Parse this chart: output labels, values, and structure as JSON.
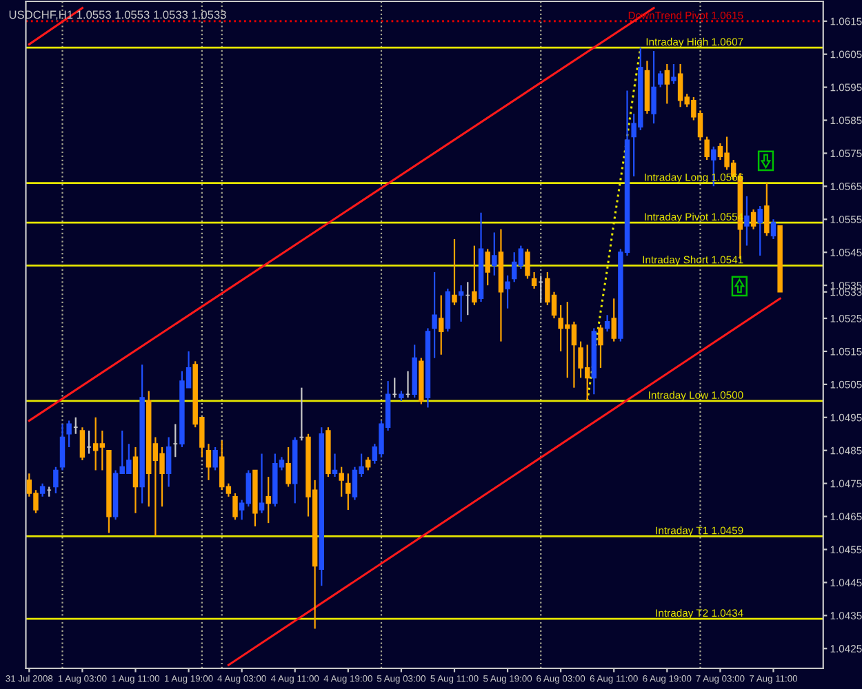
{
  "chart_data": {
    "type": "candlestick",
    "title": "USDCHF,H1 1.0553 1.0553 1.0533 1.0533",
    "categories": [
      "31 Jul 2008",
      null,
      null,
      null,
      null,
      null,
      null,
      null,
      "1 Aug 03:00",
      null,
      null,
      null,
      null,
      null,
      null,
      null,
      "1 Aug 11:00",
      null,
      null,
      null,
      null,
      null,
      null,
      null,
      "1 Aug 19:00",
      null,
      null,
      null,
      null,
      null,
      null,
      null,
      "4 Aug 03:00",
      null,
      null,
      null,
      null,
      null,
      null,
      null,
      "4 Aug 11:00",
      null,
      null,
      null,
      null,
      null,
      null,
      null,
      "4 Aug 19:00",
      null,
      null,
      null,
      null,
      null,
      null,
      null,
      "5 Aug 03:00",
      null,
      null,
      null,
      null,
      null,
      null,
      null,
      "5 Aug 11:00",
      null,
      null,
      null,
      null,
      null,
      null,
      null,
      "5 Aug 19:00",
      null,
      null,
      null,
      null,
      null,
      null,
      null,
      "6 Aug 03:00",
      null,
      null,
      null,
      null,
      null,
      null,
      null,
      "6 Aug 11:00",
      null,
      null,
      null,
      null,
      null,
      null,
      null,
      "6 Aug 19:00",
      null,
      null,
      null,
      null,
      null,
      null,
      null,
      "7 Aug 03:00",
      null,
      null,
      null,
      null,
      null,
      null,
      null,
      "7 Aug 11:00",
      null
    ],
    "ohlc": [
      [
        1.0476,
        1.0478,
        1.0471,
        1.0472
      ],
      [
        1.0472,
        1.0473,
        1.0466,
        1.0467
      ],
      [
        1.0472,
        1.0475,
        1.0471,
        1.0474
      ],
      [
        1.0473,
        1.0474,
        1.0471,
        1.0473
      ],
      [
        1.0474,
        1.048,
        1.0472,
        1.0479
      ],
      [
        1.048,
        1.0493,
        1.0479,
        1.0489
      ],
      [
        1.049,
        1.0494,
        1.0486,
        1.0493
      ],
      [
        1.0492,
        1.0495,
        1.049,
        1.0492
      ],
      [
        1.0491,
        1.0492,
        1.0482,
        1.0483
      ],
      [
        1.0486,
        1.0491,
        1.0484,
        1.0486
      ],
      [
        1.0487,
        1.0495,
        1.0479,
        1.0485
      ],
      [
        1.0487,
        1.0491,
        1.0479,
        1.0486
      ],
      [
        1.0485,
        1.0485,
        1.046,
        1.0465
      ],
      [
        1.0465,
        1.0479,
        1.0464,
        1.0478
      ],
      [
        1.0478,
        1.0491,
        1.0478,
        1.048
      ],
      [
        1.0478,
        1.0487,
        1.0478,
        1.0482
      ],
      [
        1.0483,
        1.0486,
        1.0466,
        1.0474
      ],
      [
        1.0474,
        1.0511,
        1.0469,
        1.0501
      ],
      [
        1.05,
        1.0503,
        1.0468,
        1.0478
      ],
      [
        1.0487,
        1.0489,
        1.0459,
        1.0482
      ],
      [
        1.0484,
        1.0486,
        1.0468,
        1.0478
      ],
      [
        1.0478,
        1.0489,
        1.0474,
        1.0486
      ],
      [
        1.0487,
        1.0493,
        1.0483,
        1.0487
      ],
      [
        1.0487,
        1.0509,
        1.0486,
        1.0506
      ],
      [
        1.0504,
        1.0515,
        1.0504,
        1.051
      ],
      [
        1.0511,
        1.0512,
        1.0492,
        1.0493
      ],
      [
        1.0495,
        1.0495,
        1.0483,
        1.0486
      ],
      [
        1.0485,
        1.0487,
        1.0476,
        1.048
      ],
      [
        1.048,
        1.0486,
        1.0479,
        1.0485
      ],
      [
        1.0483,
        1.0488,
        1.0473,
        1.0474
      ],
      [
        1.0474,
        1.0475,
        1.0471,
        1.0472
      ],
      [
        1.0471,
        1.0472,
        1.0464,
        1.0465
      ],
      [
        1.0467,
        1.047,
        1.0464,
        1.0469
      ],
      [
        1.0469,
        1.0479,
        1.0468,
        1.0478
      ],
      [
        1.0479,
        1.0479,
        1.0462,
        1.0466
      ],
      [
        1.0467,
        1.0484,
        1.0466,
        1.0469
      ],
      [
        1.0471,
        1.0477,
        1.0463,
        1.0469
      ],
      [
        1.0469,
        1.0484,
        1.0468,
        1.0481
      ],
      [
        1.048,
        1.0483,
        1.0479,
        1.0482
      ],
      [
        1.0481,
        1.0486,
        1.0474,
        1.0475
      ],
      [
        1.0475,
        1.0489,
        1.0469,
        1.0488
      ],
      [
        1.0489,
        1.0504,
        1.0488,
        1.0489
      ],
      [
        1.0489,
        1.049,
        1.0465,
        1.0471
      ],
      [
        1.0473,
        1.0476,
        1.0431,
        1.045
      ],
      [
        1.0449,
        1.0492,
        1.0444,
        1.049
      ],
      [
        1.0491,
        1.0492,
        1.0477,
        1.0478
      ],
      [
        1.0478,
        1.0484,
        1.0477,
        1.0479
      ],
      [
        1.0478,
        1.048,
        1.0471,
        1.0476
      ],
      [
        1.0475,
        1.0478,
        1.0467,
        1.0472
      ],
      [
        1.0471,
        1.048,
        1.047,
        1.0479
      ],
      [
        1.0478,
        1.0484,
        1.0477,
        1.048
      ],
      [
        1.0482,
        1.0483,
        1.0479,
        1.048
      ],
      [
        1.0482,
        1.0487,
        1.0481,
        1.0486
      ],
      [
        1.0484,
        1.0494,
        1.0483,
        1.0493
      ],
      [
        1.0492,
        1.0506,
        1.0491,
        1.0502
      ],
      [
        1.0502,
        1.0507,
        1.0501,
        1.0502
      ],
      [
        1.0501,
        1.0503,
        1.05,
        1.0502
      ],
      [
        1.0502,
        1.0509,
        1.0501,
        1.0502
      ],
      [
        1.0502,
        1.0517,
        1.0501,
        1.0513
      ],
      [
        1.0512,
        1.0513,
        1.0499,
        1.05
      ],
      [
        1.0501,
        1.0522,
        1.0498,
        1.0521
      ],
      [
        1.0522,
        1.0539,
        1.0513,
        1.0526
      ],
      [
        1.0525,
        1.0532,
        1.0514,
        1.0521
      ],
      [
        1.0522,
        1.0534,
        1.0521,
        1.0533
      ],
      [
        1.0532,
        1.0549,
        1.0529,
        1.053
      ],
      [
        1.0532,
        1.0535,
        1.0524,
        1.0533
      ],
      [
        1.0532,
        1.0536,
        1.0526,
        1.0532
      ],
      [
        1.0533,
        1.0547,
        1.0529,
        1.053
      ],
      [
        1.0531,
        1.0557,
        1.053,
        1.0546
      ],
      [
        1.0545,
        1.0546,
        1.0535,
        1.0539
      ],
      [
        1.0541,
        1.0551,
        1.0538,
        1.0544
      ],
      [
        1.0545,
        1.0552,
        1.0518,
        1.0533
      ],
      [
        1.0534,
        1.0538,
        1.0528,
        1.0536
      ],
      [
        1.0537,
        1.0545,
        1.0536,
        1.0542
      ],
      [
        1.0541,
        1.0547,
        1.054,
        1.0546
      ],
      [
        1.0545,
        1.0546,
        1.0537,
        1.0538
      ],
      [
        1.0537,
        1.0539,
        1.0534,
        1.0535
      ],
      [
        1.0536,
        1.0538,
        1.053,
        1.0536
      ],
      [
        1.0537,
        1.0539,
        1.0529,
        1.053
      ],
      [
        1.0532,
        1.0533,
        1.0525,
        1.0526
      ],
      [
        1.0525,
        1.0529,
        1.0515,
        1.0522
      ],
      [
        1.0523,
        1.053,
        1.0507,
        1.0522
      ],
      [
        1.0523,
        1.0524,
        1.0504,
        1.0517
      ],
      [
        1.0516,
        1.0518,
        1.0507,
        1.051
      ],
      [
        1.051,
        1.0517,
        1.05,
        1.0507
      ],
      [
        1.0507,
        1.0522,
        1.0502,
        1.0521
      ],
      [
        1.0522,
        1.0523,
        1.051,
        1.0517
      ],
      [
        1.0522,
        1.0526,
        1.0521,
        1.0524
      ],
      [
        1.0525,
        1.0531,
        1.0518,
        1.0519
      ],
      [
        1.0519,
        1.0546,
        1.0518,
        1.0545
      ],
      [
        1.0545,
        1.0594,
        1.0544,
        1.0579
      ],
      [
        1.058,
        1.0587,
        1.0568,
        1.0584
      ],
      [
        1.0583,
        1.0607,
        1.0582,
        1.0601
      ],
      [
        1.06,
        1.0603,
        1.0587,
        1.0588
      ],
      [
        1.0587,
        1.0606,
        1.0584,
        1.0595
      ],
      [
        1.0596,
        1.06,
        1.0595,
        1.0599
      ],
      [
        1.06,
        1.0602,
        1.059,
        1.0596
      ],
      [
        1.0597,
        1.0602,
        1.0596,
        1.0598
      ],
      [
        1.0599,
        1.0602,
        1.0589,
        1.0591
      ],
      [
        1.0592,
        1.0593,
        1.0589,
        1.059
      ],
      [
        1.0591,
        1.0592,
        1.0585,
        1.0586
      ],
      [
        1.0587,
        1.0588,
        1.0579,
        1.058
      ],
      [
        1.0579,
        1.058,
        1.0573,
        1.0574
      ],
      [
        1.0573,
        1.0577,
        1.0565,
        1.0576
      ],
      [
        1.0577,
        1.0578,
        1.0573,
        1.0574
      ],
      [
        1.0575,
        1.058,
        1.057,
        1.0571
      ],
      [
        1.0572,
        1.0573,
        1.0567,
        1.0568
      ],
      [
        1.0568,
        1.0569,
        1.0543,
        1.0552
      ],
      [
        1.0553,
        1.0562,
        1.0547,
        1.0556
      ],
      [
        1.0557,
        1.0558,
        1.0552,
        1.0553
      ],
      [
        1.0554,
        1.0559,
        1.0544,
        1.0558
      ],
      [
        1.0559,
        1.0566,
        1.055,
        1.0551
      ],
      [
        1.055,
        1.0555,
        1.0549,
        1.0554
      ],
      [
        1.0553,
        1.0553,
        1.0533,
        1.0533
      ]
    ],
    "colors": [
      "#ffa500",
      "#ffa500",
      "#2050ff",
      "#c8c8c8",
      "#2050ff",
      "#2050ff",
      "#2050ff",
      "#c8c8c8",
      "#ffa500",
      "#c8c8c8",
      "#ffa500",
      "#ffa500",
      "#ffa500",
      "#2050ff",
      "#2050ff",
      "#2050ff",
      "#ffa500",
      "#2050ff",
      "#ffa500",
      "#ffa500",
      "#ffa500",
      "#2050ff",
      "#c8c8c8",
      "#2050ff",
      "#2050ff",
      "#ffa500",
      "#ffa500",
      "#ffa500",
      "#2050ff",
      "#ffa500",
      "#ffa500",
      "#ffa500",
      "#2050ff",
      "#2050ff",
      "#ffa500",
      "#2050ff",
      "#ffa500",
      "#2050ff",
      "#2050ff",
      "#ffa500",
      "#2050ff",
      "#c8c8c8",
      "#ffa500",
      "#ffa500",
      "#2050ff",
      "#ffa500",
      "#2050ff",
      "#ffa500",
      "#ffa500",
      "#2050ff",
      "#2050ff",
      "#ffa500",
      "#2050ff",
      "#2050ff",
      "#2050ff",
      "#c8c8c8",
      "#2050ff",
      "#c8c8c8",
      "#2050ff",
      "#ffa500",
      "#2050ff",
      "#2050ff",
      "#ffa500",
      "#2050ff",
      "#ffa500",
      "#2050ff",
      "#c8c8c8",
      "#ffa500",
      "#2050ff",
      "#ffa500",
      "#2050ff",
      "#ffa500",
      "#2050ff",
      "#2050ff",
      "#2050ff",
      "#ffa500",
      "#ffa500",
      "#c8c8c8",
      "#ffa500",
      "#ffa500",
      "#ffa500",
      "#ffa500",
      "#ffa500",
      "#ffa500",
      "#ffa500",
      "#2050ff",
      "#ffa500",
      "#2050ff",
      "#ffa500",
      "#2050ff",
      "#2050ff",
      "#2050ff",
      "#2050ff",
      "#ffa500",
      "#2050ff",
      "#2050ff",
      "#ffa500",
      "#2050ff",
      "#ffa500",
      "#ffa500",
      "#ffa500",
      "#ffa500",
      "#ffa500",
      "#2050ff",
      "#ffa500",
      "#ffa500",
      "#ffa500",
      "#ffa500",
      "#2050ff",
      "#ffa500",
      "#2050ff",
      "#ffa500",
      "#2050ff",
      "#ffa500"
    ],
    "series": [
      {
        "type": "line",
        "color": "#ff1a1a",
        "line_style": "solid",
        "values": [
          1.0494,
          null,
          null,
          null,
          null,
          null,
          null,
          null,
          null,
          null,
          null,
          null,
          null,
          null,
          null,
          null,
          null,
          null,
          null,
          null,
          null,
          null,
          null,
          null,
          null,
          null,
          null,
          null,
          null,
          null,
          null,
          null,
          null,
          null,
          null,
          null,
          null,
          null,
          null,
          null,
          null,
          null,
          null,
          null,
          null,
          null,
          null,
          null,
          null,
          null,
          null,
          null,
          null,
          null,
          null,
          null,
          null,
          null,
          null,
          null,
          null,
          null,
          null,
          null,
          null,
          null,
          null,
          null,
          null,
          null,
          null,
          null,
          null,
          null,
          null,
          null,
          null,
          null,
          null,
          null,
          null,
          null,
          null,
          null,
          null,
          null,
          null,
          null,
          null,
          null,
          null,
          null,
          null,
          null,
          1.0619,
          null,
          null,
          null,
          null,
          null,
          null,
          null,
          null,
          null,
          null,
          null,
          null,
          null,
          null,
          null,
          null,
          null,
          null,
          null
        ]
      },
      {
        "type": "line",
        "color": "#ff1a1a",
        "line_style": "solid",
        "values": [
          1.0608,
          null,
          null,
          null,
          null,
          null,
          null,
          null,
          1.0619,
          null,
          null,
          null,
          null,
          null,
          null,
          null,
          null,
          null,
          null,
          null,
          null,
          null,
          null,
          null,
          null,
          null,
          null,
          null,
          null,
          null,
          null,
          null,
          null,
          null,
          null,
          null,
          null,
          null,
          null,
          null,
          null,
          null,
          null,
          null,
          null,
          null,
          null,
          null,
          null,
          null,
          null,
          null,
          null,
          null,
          null,
          null,
          null,
          null,
          null,
          null,
          null,
          null,
          null,
          null,
          null,
          null,
          null,
          null,
          null,
          null,
          null,
          null,
          null,
          null,
          null,
          null,
          null,
          null,
          null,
          null,
          null,
          null,
          null,
          null,
          null,
          null,
          null,
          null,
          null,
          null,
          null,
          null,
          null,
          null,
          null,
          null,
          null,
          null,
          null,
          null,
          null,
          null,
          null,
          null,
          null,
          null,
          null,
          null,
          null,
          null,
          null,
          null,
          null,
          null
        ]
      },
      {
        "type": "line",
        "color": "#ff1a1a",
        "line_style": "solid",
        "values": [
          null,
          null,
          null,
          null,
          null,
          null,
          null,
          null,
          null,
          null,
          null,
          null,
          null,
          null,
          null,
          null,
          null,
          null,
          null,
          null,
          null,
          null,
          null,
          null,
          null,
          null,
          null,
          null,
          null,
          null,
          1.042,
          null,
          null,
          null,
          null,
          null,
          null,
          null,
          null,
          null,
          null,
          null,
          null,
          null,
          null,
          null,
          null,
          null,
          null,
          null,
          null,
          null,
          null,
          null,
          null,
          null,
          null,
          null,
          null,
          null,
          null,
          null,
          null,
          null,
          null,
          null,
          null,
          null,
          null,
          null,
          null,
          null,
          null,
          null,
          null,
          null,
          null,
          null,
          null,
          null,
          null,
          null,
          null,
          null,
          null,
          null,
          null,
          null,
          null,
          null,
          null,
          null,
          null,
          null,
          null,
          null,
          null,
          null,
          null,
          null,
          null,
          null,
          null,
          null,
          null,
          null,
          null,
          null,
          null,
          null,
          null,
          null,
          null,
          1.0531
        ]
      },
      {
        "type": "line",
        "color": "#e6e600",
        "line_style": "dotted",
        "values": [
          null,
          null,
          null,
          null,
          null,
          null,
          null,
          null,
          null,
          null,
          null,
          null,
          null,
          null,
          null,
          null,
          null,
          null,
          null,
          null,
          null,
          null,
          null,
          null,
          null,
          null,
          null,
          null,
          null,
          null,
          null,
          null,
          null,
          null,
          null,
          null,
          null,
          null,
          null,
          null,
          null,
          null,
          null,
          null,
          null,
          null,
          null,
          null,
          null,
          null,
          null,
          null,
          null,
          null,
          null,
          null,
          null,
          null,
          null,
          null,
          null,
          null,
          null,
          null,
          null,
          null,
          null,
          null,
          null,
          null,
          null,
          null,
          null,
          null,
          null,
          null,
          null,
          null,
          null,
          null,
          null,
          null,
          null,
          null,
          1.05,
          1.0513,
          1.0527,
          1.054,
          1.0554,
          1.0567,
          1.058,
          1.0594,
          1.0607,
          null,
          null,
          null,
          null,
          null,
          null,
          null,
          null,
          null,
          null,
          null,
          null,
          null,
          null,
          null,
          null,
          null,
          null,
          null,
          null,
          null
        ]
      }
    ],
    "ref_lines": [
      {
        "axis": "y",
        "value": 1.0615,
        "label": "DownTrend Pivot 1.0615",
        "color": "#e00000",
        "line_style": "dotted"
      },
      {
        "axis": "y",
        "value": 1.0607,
        "label": "Intraday High 1.0607",
        "color": "#e6e600",
        "line_style": "solid"
      },
      {
        "axis": "y",
        "value": 1.0566,
        "label": "Intraday Long 1.0566",
        "color": "#e6e600",
        "line_style": "solid"
      },
      {
        "axis": "y",
        "value": 1.0554,
        "label": "Intraday Pivot 1.0554",
        "color": "#e6e600",
        "line_style": "solid"
      },
      {
        "axis": "y",
        "value": 1.0541,
        "label": "Intraday Short 1.0541",
        "color": "#e6e600",
        "line_style": "solid"
      },
      {
        "axis": "y",
        "value": 1.05,
        "label": "Intraday Low 1.0500",
        "color": "#e6e600",
        "line_style": "solid"
      },
      {
        "axis": "y",
        "value": 1.0459,
        "label": "Intraday T1 1.0459",
        "color": "#e6e600",
        "line_style": "solid"
      },
      {
        "axis": "y",
        "value": 1.0434,
        "label": "Intraday T2 1.0434",
        "color": "#e6e600",
        "line_style": "solid"
      }
    ],
    "grid": "x",
    "ylim": [
      1.0419,
      1.0621
    ],
    "yticks": [
      1.0615,
      1.0605,
      1.0595,
      1.0585,
      1.0575,
      1.0565,
      1.0555,
      1.0545,
      1.0535,
      1.0533,
      1.0525,
      1.0515,
      1.0505,
      1.0495,
      1.0485,
      1.0475,
      1.0465,
      1.0455,
      1.0445,
      1.0435,
      1.0425
    ]
  }
}
